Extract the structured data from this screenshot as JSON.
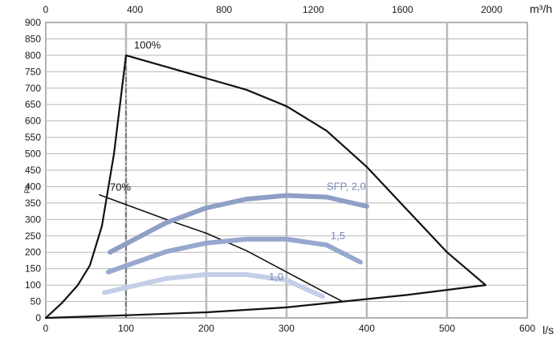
{
  "chart_data": {
    "type": "line",
    "ylabel": "Pa",
    "xlabel": "l/s",
    "x2label": "m³/h",
    "xlim": [
      0,
      600
    ],
    "ylim": [
      0,
      900
    ],
    "x2lim": [
      0,
      2160
    ],
    "x_ticks": [
      0,
      100,
      200,
      300,
      400,
      500,
      600
    ],
    "y_ticks": [
      0,
      50,
      100,
      150,
      200,
      250,
      300,
      350,
      400,
      450,
      500,
      550,
      600,
      650,
      700,
      750,
      800,
      850,
      900
    ],
    "x2_ticks": [
      0,
      400,
      800,
      1200,
      1600,
      2000
    ],
    "grid": true,
    "reference_line_x": 100,
    "series": [
      {
        "name": "100%",
        "color": "#111111",
        "x": [
          0,
          20,
          40,
          55,
          70,
          85,
          100,
          150,
          200,
          250,
          300,
          350,
          400,
          450,
          500,
          548
        ],
        "y": [
          0,
          45,
          100,
          160,
          280,
          500,
          800,
          765,
          730,
          695,
          645,
          570,
          460,
          330,
          200,
          100
        ]
      },
      {
        "name": "70%",
        "color": "#111111",
        "x": [
          67,
          100,
          150,
          200,
          250,
          300,
          350,
          370
        ],
        "y": [
          375,
          345,
          300,
          258,
          205,
          140,
          75,
          50
        ]
      },
      {
        "name": "",
        "color": "#111111",
        "x": [
          0,
          100,
          200,
          300,
          370,
          450,
          548
        ],
        "y": [
          0,
          8,
          17,
          32,
          50,
          70,
          100
        ]
      },
      {
        "name": "SFP, 2,0",
        "color": "#8f9fc6",
        "x": [
          80,
          150,
          200,
          250,
          300,
          350,
          400
        ],
        "y": [
          200,
          290,
          335,
          362,
          373,
          368,
          340
        ]
      },
      {
        "name": "1,5",
        "color": "#97a7cf",
        "x": [
          78,
          150,
          200,
          250,
          300,
          350,
          392
        ],
        "y": [
          140,
          202,
          228,
          240,
          240,
          222,
          170
        ]
      },
      {
        "name": "1,0",
        "color": "#c3cfe6",
        "x": [
          73,
          150,
          200,
          250,
          300,
          345
        ],
        "y": [
          77,
          120,
          132,
          132,
          115,
          65
        ]
      }
    ],
    "annotations": [
      {
        "text": "100%",
        "x": 110,
        "y": 820,
        "color": "#111111"
      },
      {
        "text": "70%",
        "x": 80,
        "y": 388,
        "color": "#111111"
      },
      {
        "text": "SFP, 2,0",
        "x": 350,
        "y": 390,
        "color": "#7a8bb5"
      },
      {
        "text": "1,5",
        "x": 355,
        "y": 240,
        "color": "#7a8bb5"
      },
      {
        "text": "1,0",
        "x": 278,
        "y": 115,
        "color": "#7a8bb5"
      }
    ]
  }
}
